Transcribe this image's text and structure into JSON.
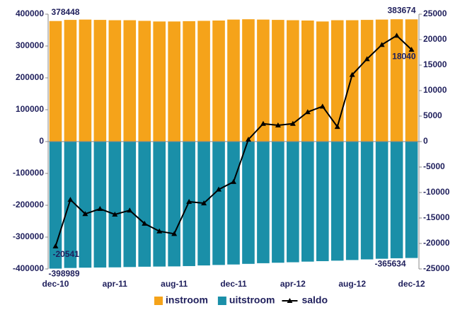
{
  "chart_data": {
    "type": "bar-line",
    "categories": [
      "dec-10",
      null,
      null,
      null,
      "apr-11",
      null,
      null,
      null,
      "aug-11",
      null,
      null,
      null,
      "dec-11",
      null,
      null,
      null,
      "apr-12",
      null,
      null,
      null,
      "aug-12",
      null,
      null,
      null,
      "dec-12"
    ],
    "series": [
      {
        "name": "instroom",
        "color": "#f5a31a",
        "type": "bar",
        "values": [
          378448,
          382000,
          383000,
          382000,
          381000,
          381000,
          379000,
          377000,
          377000,
          378000,
          379000,
          380000,
          383000,
          384000,
          383000,
          382000,
          381000,
          380000,
          377000,
          381000,
          381000,
          382000,
          383000,
          384000,
          383674
        ]
      },
      {
        "name": "uitstroom",
        "color": "#1a8fa8",
        "type": "bar",
        "values": [
          -398989,
          -397000,
          -396000,
          -395500,
          -395000,
          -394000,
          -393000,
          -392500,
          -392000,
          -391000,
          -389000,
          -387500,
          -386000,
          -384000,
          -382000,
          -380500,
          -379000,
          -377000,
          -375500,
          -374000,
          -372000,
          -370000,
          -368000,
          -366500,
          -365634
        ]
      },
      {
        "name": "saldo",
        "color": "#000000",
        "type": "line",
        "axis": "y2",
        "values": [
          -20541,
          -11400,
          -14200,
          -13200,
          -14300,
          -13500,
          -16100,
          -17600,
          -18100,
          -11800,
          -12100,
          -9400,
          -7900,
          400,
          3500,
          3200,
          3500,
          5800,
          6900,
          2900,
          13100,
          16200,
          19000,
          20800,
          18040
        ]
      }
    ],
    "ylim": [
      -400000,
      400000
    ],
    "yticks": [
      -400000,
      -300000,
      -200000,
      -100000,
      0,
      100000,
      200000,
      300000,
      400000
    ],
    "y2lim": [
      -25000,
      25000
    ],
    "y2ticks": [
      -25000,
      -20000,
      -15000,
      -10000,
      -5000,
      0,
      5000,
      10000,
      15000,
      20000,
      25000
    ],
    "legend": "bottom"
  }
}
